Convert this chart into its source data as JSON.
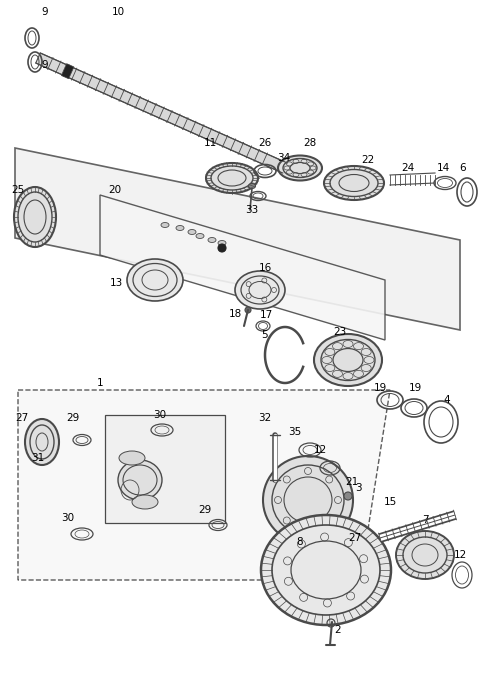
{
  "background_color": "#ffffff",
  "fig_width": 4.8,
  "fig_height": 6.93,
  "dpi": 100,
  "line_color": "#4a4a4a",
  "label_fontsize": 7.5
}
